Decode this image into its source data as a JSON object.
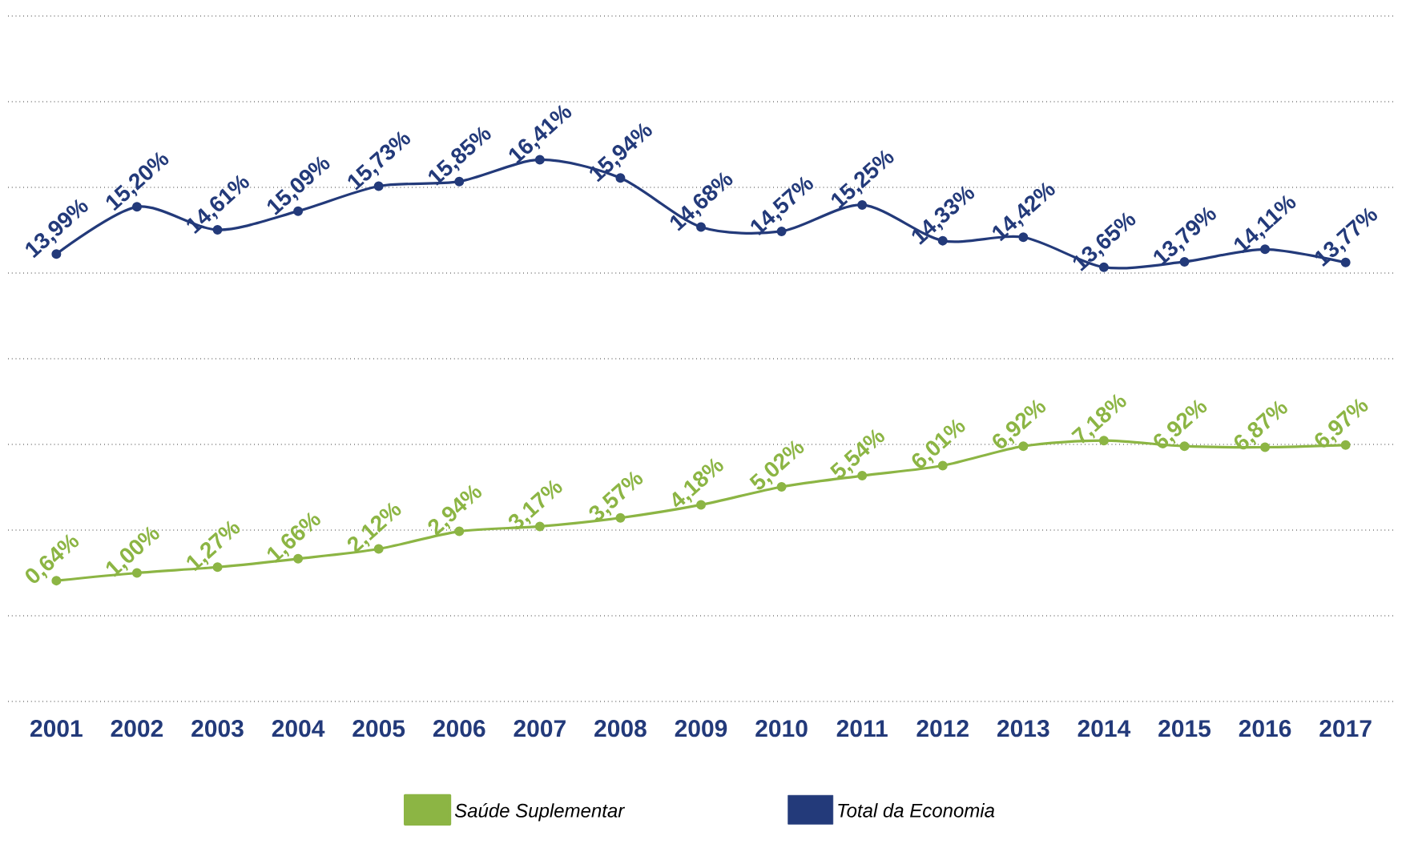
{
  "chart_data": {
    "type": "line",
    "categories": [
      "2001",
      "2002",
      "2003",
      "2004",
      "2005",
      "2006",
      "2007",
      "2008",
      "2009",
      "2010",
      "2011",
      "2012",
      "2013",
      "2014",
      "2015",
      "2016",
      "2017"
    ],
    "series": [
      {
        "name": "Saúde Suplementar",
        "color": "#8cb544",
        "values": [
          0.64,
          1.0,
          1.27,
          1.66,
          2.12,
          2.94,
          3.17,
          3.57,
          4.18,
          5.02,
          5.54,
          6.01,
          6.92,
          7.18,
          6.92,
          6.87,
          6.97
        ],
        "value_labels": [
          "0,64%",
          "1,00%",
          "1,27%",
          "1,66%",
          "2,12%",
          "2,94%",
          "3,17%",
          "3,57%",
          "4,18%",
          "5,02%",
          "5,54%",
          "6,01%",
          "6,92%",
          "7,18%",
          "6,92%",
          "6,87%",
          "6,97%"
        ]
      },
      {
        "name": "Total da Economia",
        "color": "#233a7a",
        "axis": "y2",
        "values": [
          13.99,
          15.2,
          14.61,
          15.09,
          15.73,
          15.85,
          16.41,
          15.94,
          14.68,
          14.57,
          15.25,
          14.33,
          14.42,
          13.65,
          13.79,
          14.11,
          13.77
        ],
        "value_labels": [
          "13,99%",
          "15,20%",
          "14,61%",
          "15,09%",
          "15,73%",
          "15,85%",
          "16,41%",
          "15,94%",
          "14,68%",
          "14,57%",
          "15,25%",
          "14,33%",
          "14,42%",
          "13,65%",
          "13,79%",
          "14,11%",
          "13,77%"
        ]
      }
    ],
    "ylim": [
      -5,
      27
    ],
    "yticks": [
      {
        "value": -5,
        "label": null
      },
      {
        "value": -1,
        "label": null
      },
      {
        "value": 3,
        "label": null
      },
      {
        "value": 7,
        "label": null
      },
      {
        "value": 11,
        "label": null
      },
      {
        "value": 15,
        "label": null
      },
      {
        "value": 19,
        "label": null
      },
      {
        "value": 23,
        "label": null
      },
      {
        "value": 27,
        "label": null
      }
    ],
    "y2lim": [
      2.5,
      20.1
    ],
    "grid": "y",
    "legend": "bottom",
    "marker": "circle",
    "tick_labels": "x"
  }
}
